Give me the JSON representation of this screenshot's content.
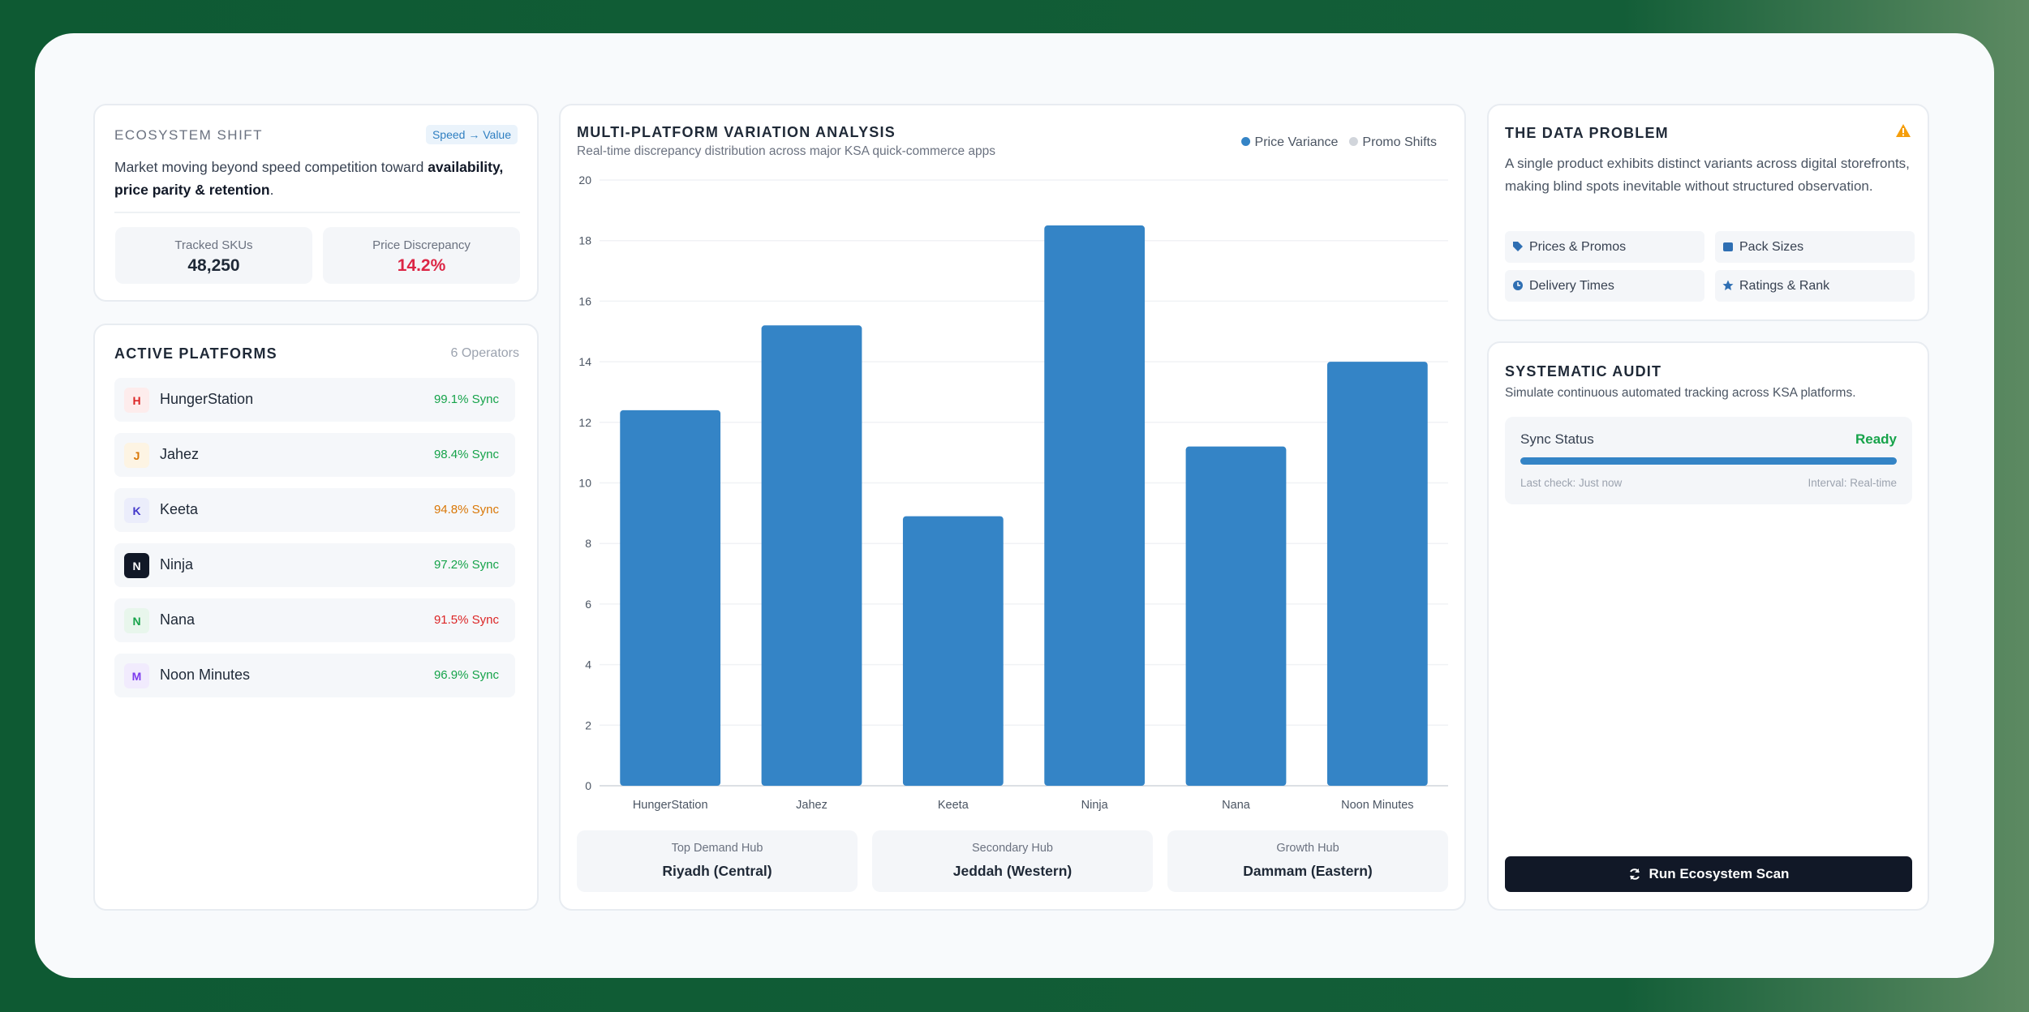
{
  "ecosystem": {
    "title": "ECOSYSTEM SHIFT",
    "badge": "Speed → Value",
    "description": [
      "Market moving beyond speed competition toward ",
      "availability, price parity & retention",
      "."
    ],
    "stats": [
      {
        "label": "Tracked SKUs",
        "value": "48,250"
      },
      {
        "label": "Price Discrepancy",
        "value": "14.2%"
      }
    ]
  },
  "platforms": {
    "title": "ACTIVE PLATFORMS",
    "count": "6 Operators",
    "items": [
      {
        "letter": "H",
        "name": "HungerStation",
        "sync": "99.1% Sync",
        "badge_color": "#dc2626",
        "badge_bg": "#fdecec",
        "sync_color": "#16a34a"
      },
      {
        "letter": "J",
        "name": "Jahez",
        "sync": "98.4% Sync",
        "badge_color": "#d97706",
        "badge_bg": "#fdf4e3",
        "sync_color": "#16a34a"
      },
      {
        "letter": "K",
        "name": "Keeta",
        "sync": "94.8% Sync",
        "badge_color": "#4338ca",
        "badge_bg": "#ebedfb",
        "sync_color": "#d97706"
      },
      {
        "letter": "N",
        "name": "Ninja",
        "sync": "97.2% Sync",
        "badge_color": "#ffffff",
        "badge_bg": "#111827",
        "sync_color": "#16a34a"
      },
      {
        "letter": "N",
        "name": "Nana",
        "sync": "91.5% Sync",
        "badge_color": "#16a34a",
        "badge_bg": "#e8f6ec",
        "sync_color": "#dc2626"
      },
      {
        "letter": "M",
        "name": "Noon Minutes",
        "sync": "96.9% Sync",
        "badge_color": "#7c3aed",
        "badge_bg": "#f1ebfd",
        "sync_color": "#16a34a"
      }
    ]
  },
  "chart_data": {
    "type": "bar",
    "title": "MULTI-PLATFORM VARIATION ANALYSIS",
    "subtitle": "Real-time discrepancy distribution across major KSA quick-commerce apps",
    "categories": [
      "HungerStation",
      "Jahez",
      "Keeta",
      "Ninja",
      "Nana",
      "Noon Minutes"
    ],
    "series": [
      {
        "name": "Price Variance",
        "color": "#3484c6",
        "values": [
          12.4,
          15.2,
          8.9,
          18.5,
          11.2,
          14.0
        ]
      },
      {
        "name": "Promo Shifts",
        "color": "#d1d5db",
        "values": [
          null,
          null,
          null,
          null,
          null,
          null
        ]
      }
    ],
    "ylim": [
      0,
      20
    ],
    "yticks": [
      0,
      2,
      4,
      6,
      8,
      10,
      12,
      14,
      16,
      18,
      20
    ],
    "grid": true
  },
  "hubs": [
    {
      "label": "Top Demand Hub",
      "city": "Riyadh (Central)"
    },
    {
      "label": "Secondary Hub",
      "city": "Jeddah (Western)"
    },
    {
      "label": "Growth Hub",
      "city": "Dammam (Eastern)"
    }
  ],
  "data_problem": {
    "title": "THE DATA PROBLEM",
    "text": "A single product exhibits distinct variants across digital storefronts, making blind spots inevitable without structured observation.",
    "chips": [
      "Prices & Promos",
      "Pack Sizes",
      "Delivery Times",
      "Ratings & Rank"
    ]
  },
  "audit": {
    "title": "SYSTEMATIC AUDIT",
    "subtitle": "Simulate continuous automated tracking across KSA platforms.",
    "status_label": "Sync Status",
    "status": "Ready",
    "last_check": "Last check: Just now",
    "interval": "Interval: Real-time",
    "button": "Run Ecosystem Scan"
  }
}
